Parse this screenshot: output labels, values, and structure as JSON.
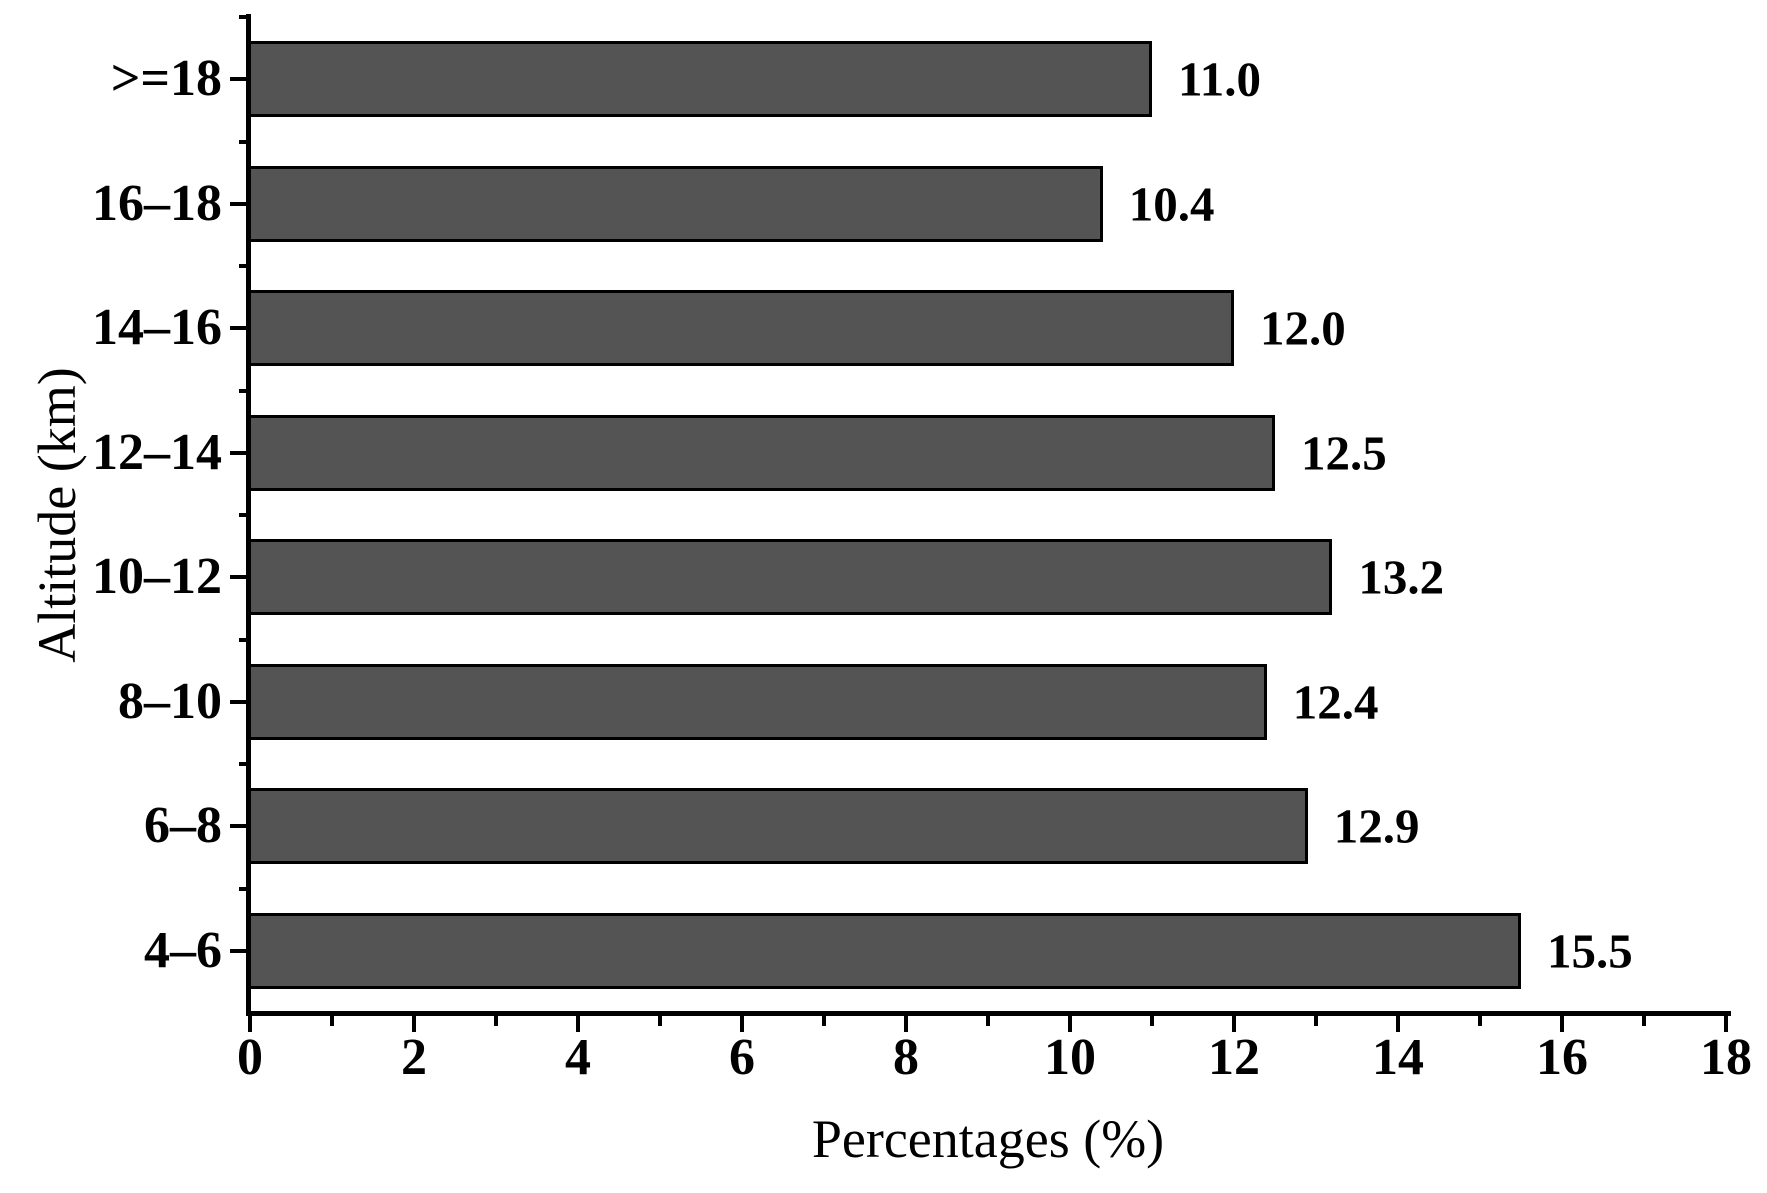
{
  "chart_data": {
    "type": "bar",
    "orientation": "horizontal",
    "title": "",
    "xlabel": "Percentages (%)",
    "ylabel": "Altitude (km)",
    "categories": [
      ">=18",
      "16–18",
      "14–16",
      "12–14",
      "10–12",
      "8–10",
      "6–8",
      "4–6"
    ],
    "values": [
      11.0,
      10.4,
      12.0,
      12.5,
      13.2,
      12.4,
      12.9,
      15.5
    ],
    "value_labels": [
      "11.0",
      "10.4",
      "12.0",
      "12.5",
      "13.2",
      "12.4",
      "12.9",
      "15.5"
    ],
    "xlim": [
      0,
      18
    ],
    "x_major_ticks": [
      0,
      2,
      4,
      6,
      8,
      10,
      12,
      14,
      16,
      18
    ],
    "x_minor_ticks": [
      1,
      3,
      5,
      7,
      9,
      11,
      13,
      15,
      17
    ],
    "grid": "off",
    "legend": "none",
    "bar_fill_color": "#545454",
    "bar_border_color": "#000000",
    "axis_color": "#000000",
    "text_color": "#000000",
    "background_color": "#ffffff"
  }
}
